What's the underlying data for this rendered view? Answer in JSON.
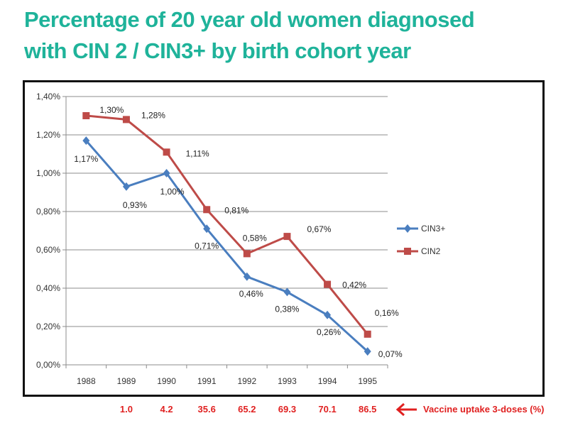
{
  "title_line1": "Percentage of 20 year old women diagnosed",
  "title_line2": "with CIN 2 / CIN3+ by birth cohort year",
  "chart_data": {
    "type": "line",
    "categories": [
      "1988",
      "1989",
      "1990",
      "1991",
      "1992",
      "1993",
      "1994",
      "1995"
    ],
    "ylim": [
      0,
      1.4
    ],
    "yticks": [
      "0,00%",
      "0,20%",
      "0,40%",
      "0,60%",
      "0,80%",
      "1,00%",
      "1,20%",
      "1,40%"
    ],
    "grid": true,
    "legend_position": "right",
    "series": [
      {
        "name": "CIN3+",
        "color": "#4a7ebf",
        "marker": "diamond",
        "values": [
          1.17,
          0.93,
          1.0,
          0.71,
          0.46,
          0.38,
          0.26,
          0.07
        ],
        "labels": [
          "1,17%",
          "0,93%",
          "1,00%",
          "0,71%",
          "0,46%",
          "0,38%",
          "0,26%",
          "0,07%"
        ]
      },
      {
        "name": "CIN2",
        "color": "#be4b48",
        "marker": "square",
        "values": [
          1.3,
          1.28,
          1.11,
          0.81,
          0.58,
          0.67,
          0.42,
          0.16
        ],
        "labels": [
          "1,30%",
          "1,28%",
          "1,11%",
          "0,81%",
          "0,58%",
          "0,67%",
          "0,42%",
          "0,16%"
        ]
      }
    ]
  },
  "vaccine_uptake": {
    "values": [
      "1.0",
      "4.2",
      "35.6",
      "65.2",
      "69.3",
      "70.1",
      "86.5"
    ],
    "label": "Vaccine uptake 3-doses (%)",
    "color": "#e02020"
  }
}
